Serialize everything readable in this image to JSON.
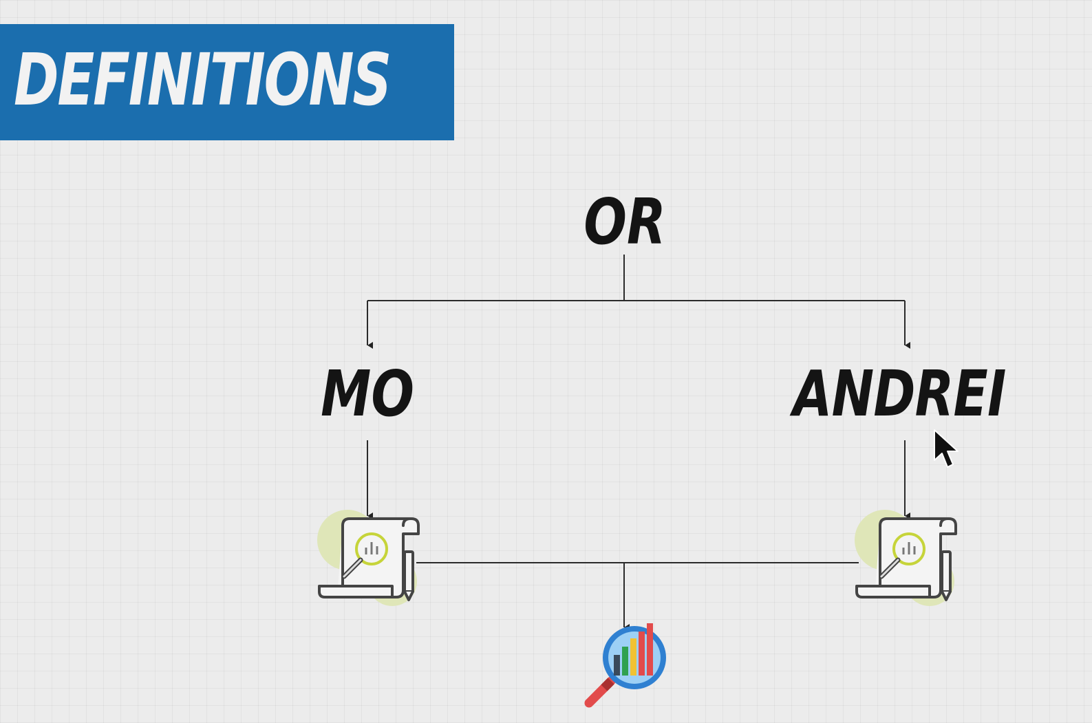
{
  "banner": {
    "title": "DEFINITIONS",
    "color": "#1b6eae"
  },
  "diagram": {
    "root": {
      "label": "OR"
    },
    "branches": [
      {
        "label": "MO",
        "icon": "report-scroll-icon"
      },
      {
        "label": "ANDREI",
        "icon": "report-scroll-icon"
      }
    ],
    "result": {
      "icon": "analytics-magnifier-icon"
    }
  },
  "cursor": {
    "icon": "mouse-pointer-icon"
  }
}
